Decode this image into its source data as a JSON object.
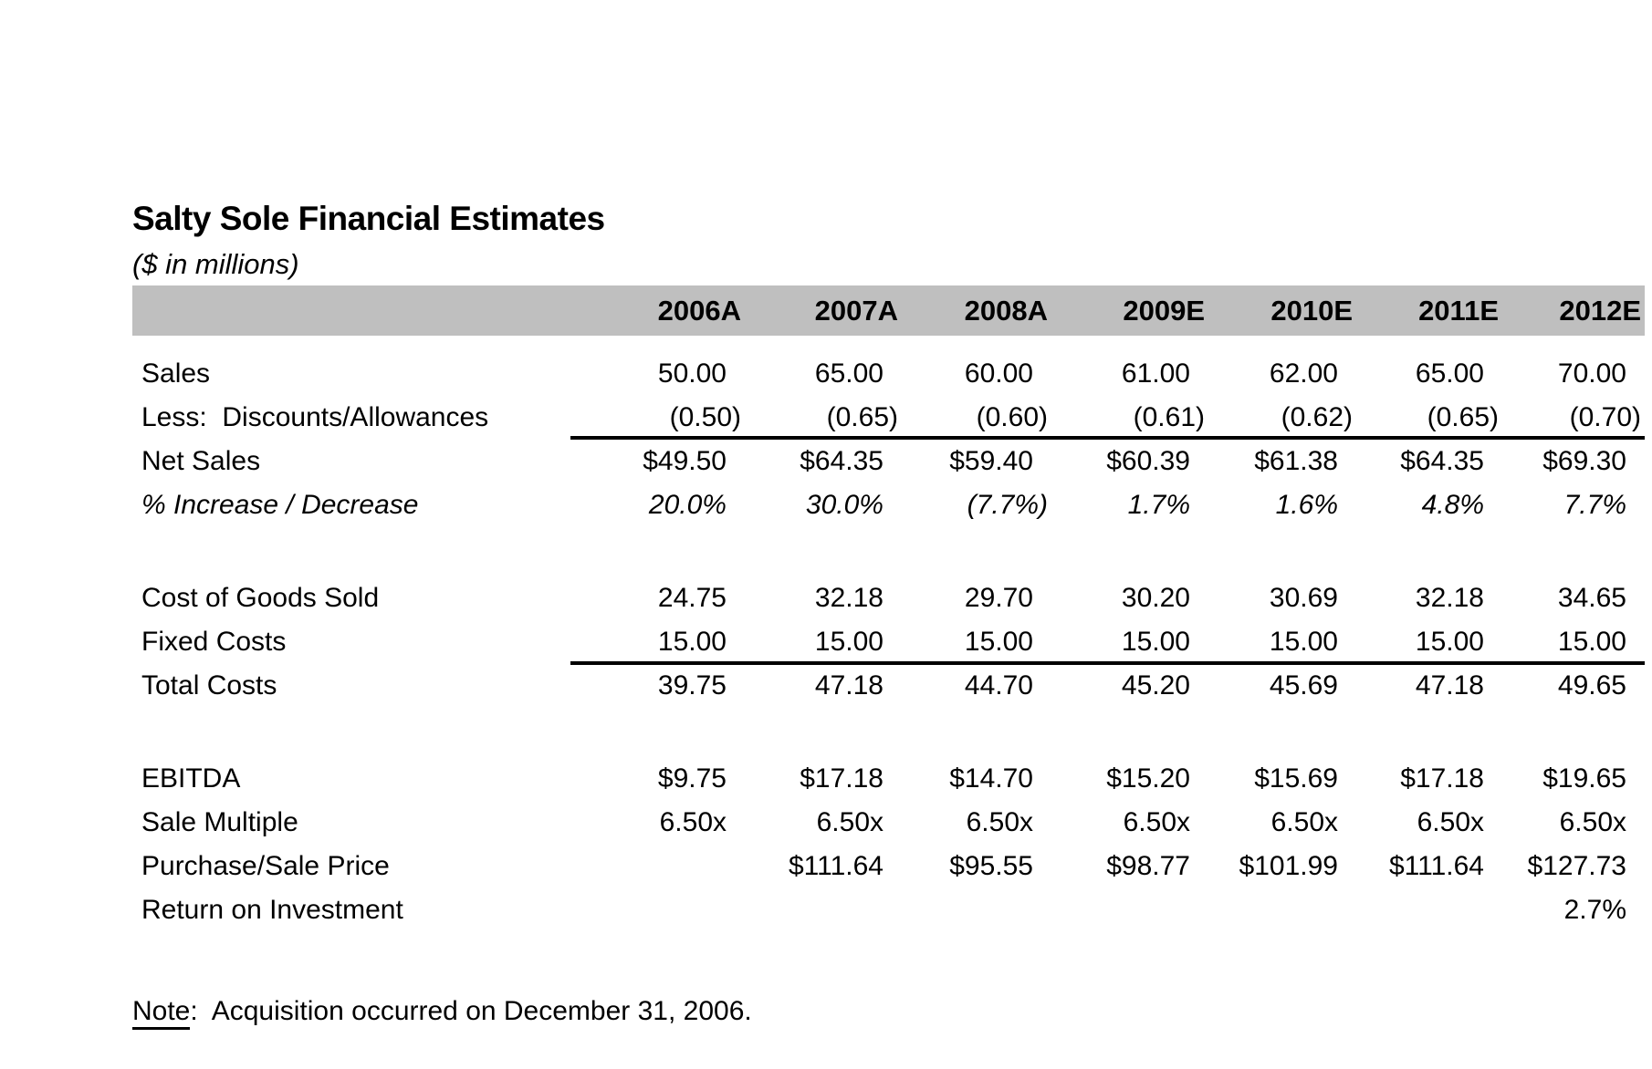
{
  "document": {
    "title": "Salty Sole Financial Estimates",
    "subtitle": "($ in millions)",
    "note": {
      "label": "Note",
      "rest": ":  Acquisition occurred on December 31, 2006."
    }
  },
  "colors": {
    "header-band": "#bfbfbf",
    "text": "#000000",
    "page-bg": "#ffffff"
  },
  "table": {
    "corner_label": "",
    "columns": [
      "2006A",
      "2007A",
      "2008A",
      "2009E",
      "2010E",
      "2011E",
      "2012E"
    ],
    "rows": [
      {
        "label": "Sales",
        "values": [
          "50.00",
          "65.00",
          "60.00",
          "61.00",
          "62.00",
          "65.00",
          "70.00"
        ]
      },
      {
        "label": "Less:  Discounts/Allowances",
        "values": [
          "(0.50)",
          "(0.65)",
          "(0.60)",
          "(0.61)",
          "(0.62)",
          "(0.65)",
          "(0.70)"
        ],
        "rule_below": true
      },
      {
        "label": "Net Sales",
        "values": [
          "$49.50",
          "$64.35",
          "$59.40",
          "$60.39",
          "$61.38",
          "$64.35",
          "$69.30"
        ]
      },
      {
        "label": "% Increase / Decrease",
        "values": [
          "20.0%",
          "30.0%",
          "(7.7%)",
          "1.7%",
          "1.6%",
          "4.8%",
          "7.7%"
        ],
        "italic": true
      },
      {
        "label": "Cost of Goods Sold",
        "values": [
          "24.75",
          "32.18",
          "29.70",
          "30.20",
          "30.69",
          "32.18",
          "34.65"
        ],
        "gap_above": true
      },
      {
        "label": "Fixed Costs",
        "values": [
          "15.00",
          "15.00",
          "15.00",
          "15.00",
          "15.00",
          "15.00",
          "15.00"
        ],
        "rule_below": true
      },
      {
        "label": "Total Costs",
        "values": [
          "39.75",
          "47.18",
          "44.70",
          "45.20",
          "45.69",
          "47.18",
          "49.65"
        ]
      },
      {
        "label": "EBITDA",
        "values": [
          "$9.75",
          "$17.18",
          "$14.70",
          "$15.20",
          "$15.69",
          "$17.18",
          "$19.65"
        ],
        "gap_above": true
      },
      {
        "label": "Sale Multiple",
        "values": [
          "6.50x",
          "6.50x",
          "6.50x",
          "6.50x",
          "6.50x",
          "6.50x",
          "6.50x"
        ]
      },
      {
        "label": "Purchase/Sale Price",
        "values": [
          "",
          "$111.64",
          "$95.55",
          "$98.77",
          "$101.99",
          "$111.64",
          "$127.73"
        ]
      },
      {
        "label": "Return on Investment",
        "values": [
          "",
          "",
          "",
          "",
          "",
          "",
          "2.7%"
        ]
      }
    ]
  }
}
